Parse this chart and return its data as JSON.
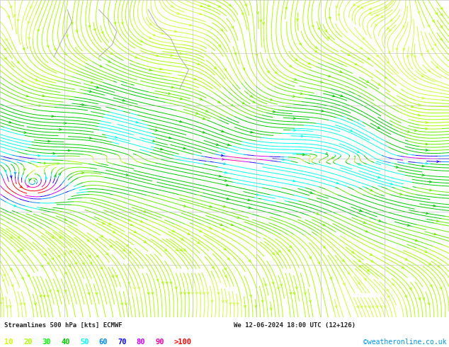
{
  "title_line1": "Streamlines 500 hPa [kts] ECMWF",
  "title_line2": "We 12-06-2024 18:00 UTC (12+126)",
  "watermark": "©weatheronline.co.uk",
  "legend_values": [
    "10",
    "20",
    "30",
    "40",
    "50",
    "60",
    "70",
    "80",
    "90",
    ">100"
  ],
  "legend_colors": [
    "#ccff00",
    "#aaff00",
    "#00ff00",
    "#00cc00",
    "#00ffff",
    "#0088ff",
    "#0000ff",
    "#cc00ff",
    "#ff00aa",
    "#ff0000"
  ],
  "bg_color": "#f0f0f0",
  "info_bg": "#ffffff",
  "grid_color": "#aaaaaa",
  "speed_bands": [
    {
      "smin": 0,
      "smax": 10,
      "color": "#ccff33"
    },
    {
      "smin": 10,
      "smax": 20,
      "color": "#aaff00"
    },
    {
      "smin": 20,
      "smax": 30,
      "color": "#66ee00"
    },
    {
      "smin": 30,
      "smax": 40,
      "color": "#00cc00"
    },
    {
      "smin": 40,
      "smax": 50,
      "color": "#00ffee"
    },
    {
      "smin": 50,
      "smax": 60,
      "color": "#0088ff"
    },
    {
      "smin": 60,
      "smax": 70,
      "color": "#2200ff"
    },
    {
      "smin": 70,
      "smax": 80,
      "color": "#cc00ff"
    },
    {
      "smin": 80,
      "smax": 90,
      "color": "#ff00aa"
    },
    {
      "smin": 90,
      "smax": 999,
      "color": "#ff0000"
    }
  ]
}
